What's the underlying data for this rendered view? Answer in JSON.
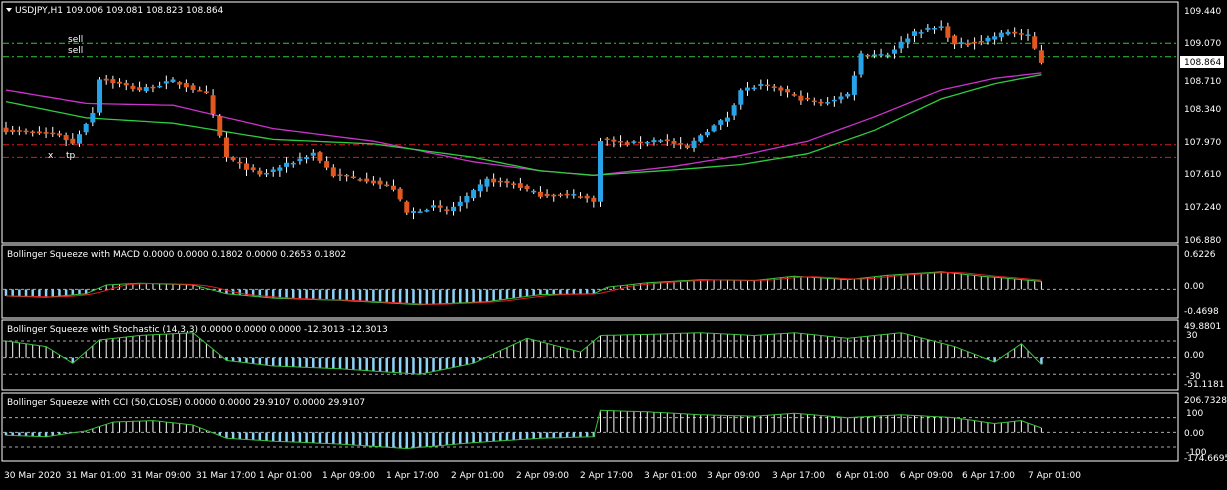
{
  "colors": {
    "background": "#000000",
    "frame": "#ffffff",
    "bull": "#29a3e8",
    "bear": "#e2571f",
    "ma_fast": "#2ecc40",
    "ma_slow": "#cc33cc",
    "sell_line": "#2ecc40",
    "red_line": "#d02020",
    "hist_pos": "#ffffff",
    "hist_neg": "#8fd3f7",
    "signal": "#e02020",
    "indicator_line": "#39c23a",
    "price_box_bg": "#ffffff",
    "price_box_text": "#000000"
  },
  "main": {
    "title": "USDJPY,H1  109.006 109.081 108.823 108.864",
    "current_price": "108.864",
    "y_labels": [
      "109.440",
      "109.070",
      "108.710",
      "108.340",
      "107.970",
      "107.610",
      "107.240",
      "106.880"
    ],
    "ylim": [
      106.88,
      109.44
    ],
    "trade_labels": [
      "sell",
      "sell",
      "tp"
    ],
    "tp_marker": "x"
  },
  "panes": [
    {
      "title": "Bollinger Squeeze with MACD 0.0000 0.0000 0.1802 0.0000 0.2653 0.1802",
      "y_labels": [
        "0.6226",
        "0.00",
        "-0.4698"
      ],
      "ylim": [
        -0.4698,
        0.6226
      ]
    },
    {
      "title": "Bollinger Squeeze with Stochastic (14,3,3) 0.0000 0.0000 0.0000 -12.3013 -12.3013",
      "y_labels": [
        "49.8801",
        "30",
        "0.00",
        "-30",
        "-51.1181"
      ],
      "ylim": [
        -51.1181,
        49.8801
      ]
    },
    {
      "title": "Bollinger Squeeze with CCI (50,CLOSE) 0.0000 0.0000 29.9107 0.0000 29.9107",
      "y_labels": [
        "206.7328",
        "100",
        "0.00",
        "-100",
        "-174.6695"
      ],
      "ylim": [
        -174.6695,
        206.7328
      ]
    }
  ],
  "x_labels": [
    "30 Mar 2020",
    "31 Mar 01:00",
    "31 Mar 09:00",
    "31 Mar 17:00",
    "1 Apr 01:00",
    "1 Apr 09:00",
    "1 Apr 17:00",
    "2 Apr 01:00",
    "2 Apr 09:00",
    "2 Apr 17:00",
    "3 Apr 01:00",
    "3 Apr 09:00",
    "3 Apr 17:00",
    "6 Apr 01:00",
    "6 Apr 09:00",
    "6 Apr 17:00",
    "7 Apr 01:00"
  ],
  "chart_data": {
    "type": "candlestick",
    "symbol": "USDJPY",
    "timeframe": "H1",
    "close_anchors": [
      [
        0,
        108.1
      ],
      [
        8,
        108.05
      ],
      [
        10,
        107.95
      ],
      [
        13,
        108.3
      ],
      [
        14,
        108.68
      ],
      [
        20,
        108.55
      ],
      [
        25,
        108.65
      ],
      [
        30,
        108.5
      ],
      [
        33,
        107.8
      ],
      [
        38,
        107.6
      ],
      [
        43,
        107.75
      ],
      [
        46,
        107.85
      ],
      [
        49,
        107.6
      ],
      [
        54,
        107.55
      ],
      [
        58,
        107.45
      ],
      [
        60,
        107.18
      ],
      [
        64,
        107.25
      ],
      [
        66,
        107.2
      ],
      [
        69,
        107.35
      ],
      [
        72,
        107.55
      ],
      [
        76,
        107.5
      ],
      [
        80,
        107.38
      ],
      [
        86,
        107.38
      ],
      [
        88,
        107.3
      ],
      [
        89,
        108.0
      ],
      [
        93,
        107.95
      ],
      [
        98,
        108.0
      ],
      [
        102,
        107.9
      ],
      [
        104,
        108.05
      ],
      [
        108,
        108.25
      ],
      [
        110,
        108.55
      ],
      [
        113,
        108.6
      ],
      [
        116,
        108.55
      ],
      [
        119,
        108.45
      ],
      [
        122,
        108.4
      ],
      [
        126,
        108.5
      ],
      [
        128,
        108.95
      ],
      [
        132,
        108.95
      ],
      [
        136,
        109.2
      ],
      [
        140,
        109.25
      ],
      [
        142,
        109.05
      ],
      [
        146,
        109.1
      ],
      [
        150,
        109.2
      ],
      [
        153,
        109.15
      ],
      [
        155,
        108.86
      ]
    ],
    "ma_fast_anchors": [
      [
        0,
        108.42
      ],
      [
        12,
        108.24
      ],
      [
        25,
        108.18
      ],
      [
        40,
        108.0
      ],
      [
        55,
        107.95
      ],
      [
        70,
        107.8
      ],
      [
        80,
        107.65
      ],
      [
        88,
        107.6
      ],
      [
        100,
        107.66
      ],
      [
        110,
        107.72
      ],
      [
        120,
        107.84
      ],
      [
        130,
        108.1
      ],
      [
        140,
        108.45
      ],
      [
        148,
        108.62
      ],
      [
        155,
        108.72
      ]
    ],
    "ma_slow_anchors": [
      [
        0,
        108.55
      ],
      [
        12,
        108.4
      ],
      [
        25,
        108.38
      ],
      [
        40,
        108.12
      ],
      [
        55,
        107.98
      ],
      [
        70,
        107.75
      ],
      [
        80,
        107.65
      ],
      [
        88,
        107.6
      ],
      [
        100,
        107.7
      ],
      [
        110,
        107.82
      ],
      [
        120,
        107.98
      ],
      [
        130,
        108.25
      ],
      [
        140,
        108.55
      ],
      [
        148,
        108.68
      ],
      [
        155,
        108.74
      ]
    ],
    "hlines": [
      {
        "label": "sell",
        "value": 109.07,
        "color": "sell"
      },
      {
        "label": "sell",
        "value": 108.92,
        "color": "sell"
      },
      {
        "label": "red_upper",
        "value": 107.94,
        "color": "red"
      },
      {
        "label": "tp",
        "value": 107.8,
        "color": "red"
      }
    ],
    "macd_anchors": [
      [
        0,
        -0.15
      ],
      [
        6,
        -0.18
      ],
      [
        12,
        -0.1
      ],
      [
        15,
        0.1
      ],
      [
        20,
        0.14
      ],
      [
        28,
        0.1
      ],
      [
        33,
        -0.1
      ],
      [
        40,
        -0.2
      ],
      [
        50,
        -0.25
      ],
      [
        62,
        -0.35
      ],
      [
        72,
        -0.28
      ],
      [
        80,
        -0.12
      ],
      [
        88,
        -0.1
      ],
      [
        90,
        0.05
      ],
      [
        96,
        0.15
      ],
      [
        104,
        0.22
      ],
      [
        112,
        0.2
      ],
      [
        118,
        0.3
      ],
      [
        126,
        0.22
      ],
      [
        132,
        0.32
      ],
      [
        140,
        0.4
      ],
      [
        146,
        0.3
      ],
      [
        150,
        0.25
      ],
      [
        155,
        0.18
      ]
    ],
    "stoch_anchors": [
      [
        0,
        30
      ],
      [
        6,
        20
      ],
      [
        10,
        -10
      ],
      [
        14,
        32
      ],
      [
        20,
        40
      ],
      [
        28,
        45
      ],
      [
        33,
        -5
      ],
      [
        40,
        -15
      ],
      [
        50,
        -20
      ],
      [
        62,
        -30
      ],
      [
        70,
        -10
      ],
      [
        78,
        35
      ],
      [
        86,
        10
      ],
      [
        89,
        40
      ],
      [
        96,
        42
      ],
      [
        104,
        45
      ],
      [
        112,
        40
      ],
      [
        118,
        45
      ],
      [
        126,
        35
      ],
      [
        134,
        45
      ],
      [
        142,
        20
      ],
      [
        148,
        -8
      ],
      [
        152,
        25
      ],
      [
        155,
        -12
      ]
    ],
    "cci_anchors": [
      [
        0,
        -20
      ],
      [
        6,
        -30
      ],
      [
        12,
        10
      ],
      [
        16,
        70
      ],
      [
        22,
        80
      ],
      [
        28,
        50
      ],
      [
        33,
        -40
      ],
      [
        40,
        -60
      ],
      [
        50,
        -80
      ],
      [
        60,
        -110
      ],
      [
        70,
        -70
      ],
      [
        80,
        -40
      ],
      [
        88,
        -30
      ],
      [
        89,
        150
      ],
      [
        96,
        140
      ],
      [
        104,
        120
      ],
      [
        112,
        110
      ],
      [
        118,
        130
      ],
      [
        126,
        100
      ],
      [
        134,
        120
      ],
      [
        142,
        100
      ],
      [
        148,
        60
      ],
      [
        152,
        80
      ],
      [
        155,
        30
      ]
    ]
  }
}
